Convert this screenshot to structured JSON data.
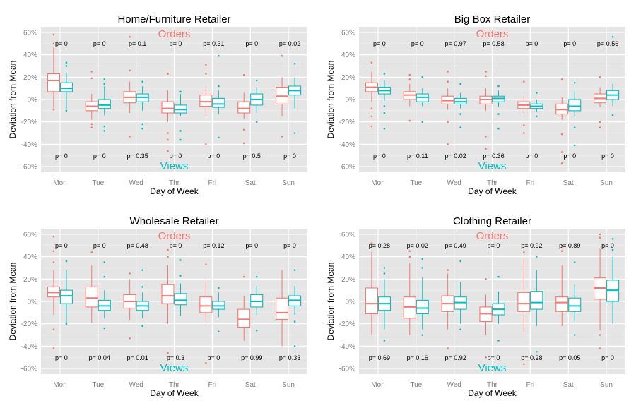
{
  "figure": {
    "colors": {
      "orders": "#f8766d",
      "views": "#00bfc4",
      "panel_bg": "#e5e5e5",
      "grid": "#ffffff"
    }
  },
  "chart_data": [
    {
      "type": "box",
      "title": "Home/Furniture Retailer",
      "xlabel": "Day of Week",
      "ylabel": "Deviation from Mean",
      "ylim": [
        -0.65,
        0.65
      ],
      "yticks": [
        -0.6,
        -0.4,
        -0.2,
        0,
        0.2,
        0.4,
        0.6
      ],
      "ytick_labels": [
        "-60%",
        "-40%",
        "-20%",
        "0%",
        "20%",
        "40%",
        "60%"
      ],
      "categories": [
        "Mon",
        "Tue",
        "Wed",
        "Thr",
        "Fri",
        "Sat",
        "Sun"
      ],
      "top_label": "Orders",
      "bottom_label": "Views",
      "p_top": [
        "p= 0",
        "p= 0",
        "p= 0.1",
        "p= 0",
        "p= 0.31",
        "p= 0",
        "p= 0.02"
      ],
      "p_bottom": [
        "p= 0",
        "p= 0",
        "p= 0.35",
        "p= 0",
        "p= 0",
        "p= 0.5",
        "p= 0"
      ],
      "series": [
        {
          "name": "Orders",
          "boxes": [
            {
              "lo": -0.08,
              "q1": 0.07,
              "med": 0.17,
              "q3": 0.23,
              "hi": 0.47,
              "out": [
                0.58,
                0.5,
                -0.09
              ]
            },
            {
              "lo": -0.18,
              "q1": -0.1,
              "med": -0.06,
              "q3": -0.02,
              "hi": 0.05,
              "out": [
                0.25,
                0.19,
                -0.22,
                -0.25
              ]
            },
            {
              "lo": -0.12,
              "q1": -0.03,
              "med": 0.02,
              "q3": 0.07,
              "hi": 0.16,
              "out": [
                0.26,
                0.56,
                -0.33
              ]
            },
            {
              "lo": -0.2,
              "q1": -0.12,
              "med": -0.08,
              "q3": -0.02,
              "hi": 0.08,
              "out": [
                0.23,
                -0.3,
                -0.36,
                -0.46
              ]
            },
            {
              "lo": -0.15,
              "q1": -0.06,
              "med": -0.02,
              "q3": 0.04,
              "hi": 0.12,
              "out": [
                0.31,
                0.23,
                -0.4
              ]
            },
            {
              "lo": -0.17,
              "q1": -0.12,
              "med": -0.08,
              "q3": -0.02,
              "hi": 0.06,
              "out": [
                0.22,
                -0.27,
                -0.39
              ]
            },
            {
              "lo": -0.15,
              "q1": -0.04,
              "med": 0.03,
              "q3": 0.11,
              "hi": 0.2,
              "out": [
                0.39,
                -0.33
              ]
            }
          ]
        },
        {
          "name": "Views",
          "boxes": [
            {
              "lo": -0.08,
              "q1": 0.07,
              "med": 0.1,
              "q3": 0.15,
              "hi": 0.24,
              "out": [
                0.33,
                0.3,
                -0.1
              ]
            },
            {
              "lo": -0.14,
              "q1": -0.08,
              "med": -0.05,
              "q3": 0.0,
              "hi": 0.12,
              "out": [
                0.18,
                0.14,
                -0.24,
                -0.28
              ]
            },
            {
              "lo": -0.1,
              "q1": -0.02,
              "med": 0.02,
              "q3": 0.05,
              "hi": 0.12,
              "out": [
                0.16,
                -0.22,
                -0.26
              ]
            },
            {
              "lo": -0.15,
              "q1": -0.12,
              "med": -0.09,
              "q3": -0.05,
              "hi": 0.05,
              "out": [
                0.07,
                -0.28,
                -0.36
              ]
            },
            {
              "lo": -0.13,
              "q1": -0.07,
              "med": -0.04,
              "q3": 0.01,
              "hi": 0.08,
              "out": [
                0.39,
                0.12,
                -0.34
              ]
            },
            {
              "lo": -0.12,
              "q1": -0.05,
              "med": 0.0,
              "q3": 0.05,
              "hi": 0.11,
              "out": [
                0.17,
                -0.2
              ]
            },
            {
              "lo": -0.08,
              "q1": 0.04,
              "med": 0.08,
              "q3": 0.12,
              "hi": 0.2,
              "out": [
                0.32,
                -0.3
              ]
            }
          ]
        }
      ]
    },
    {
      "type": "box",
      "title": "Big Box Retailer",
      "xlabel": "Day of Week",
      "ylabel": "Deviation from Mean",
      "ylim": [
        -0.65,
        0.65
      ],
      "yticks": [
        -0.6,
        -0.4,
        -0.2,
        0,
        0.2,
        0.4,
        0.6
      ],
      "ytick_labels": [
        "-60%",
        "-40%",
        "-20%",
        "0%",
        "20%",
        "40%",
        "60%"
      ],
      "categories": [
        "Mon",
        "Tue",
        "Wed",
        "Thr",
        "Fri",
        "Sat",
        "Sun"
      ],
      "top_label": "Orders",
      "bottom_label": "Views",
      "p_top": [
        "p= 0",
        "p= 0",
        "p= 0.97",
        "p= 0.58",
        "p= 0",
        "p= 0",
        "p= 0.56"
      ],
      "p_bottom": [
        "p= 0",
        "p= 0.11",
        "p= 0.02",
        "p= 0.36",
        "p= 0",
        "p= 0",
        "p= 0"
      ],
      "series": [
        {
          "name": "Orders",
          "boxes": [
            {
              "lo": -0.02,
              "q1": 0.07,
              "med": 0.11,
              "q3": 0.15,
              "hi": 0.25,
              "out": [
                0.33,
                -0.08,
                -0.15,
                -0.24
              ]
            },
            {
              "lo": -0.06,
              "q1": 0.0,
              "med": 0.04,
              "q3": 0.07,
              "hi": 0.14,
              "out": [
                0.22,
                0.18,
                -0.19
              ]
            },
            {
              "lo": -0.09,
              "q1": -0.04,
              "med": -0.01,
              "q3": 0.03,
              "hi": 0.1,
              "out": [
                0.25,
                0.16,
                -0.2,
                -0.4
              ]
            },
            {
              "lo": -0.1,
              "q1": -0.04,
              "med": 0.0,
              "q3": 0.03,
              "hi": 0.1,
              "out": [
                0.25,
                0.21,
                -0.33,
                -0.44
              ]
            },
            {
              "lo": -0.13,
              "q1": -0.08,
              "med": -0.05,
              "q3": -0.02,
              "hi": 0.04,
              "out": [
                0.16,
                -0.23,
                -0.3
              ]
            },
            {
              "lo": -0.18,
              "q1": -0.13,
              "med": -0.09,
              "q3": -0.04,
              "hi": 0.02,
              "out": [
                0.18,
                -0.31,
                -0.47,
                -0.57
              ]
            },
            {
              "lo": -0.07,
              "q1": -0.03,
              "med": 0.01,
              "q3": 0.05,
              "hi": 0.11,
              "out": [
                0.2,
                -0.2,
                -0.25
              ]
            }
          ]
        },
        {
          "name": "Views",
          "boxes": [
            {
              "lo": -0.01,
              "q1": 0.05,
              "med": 0.08,
              "q3": 0.11,
              "hi": 0.17,
              "out": [
                0.23,
                -0.06,
                -0.12,
                -0.26
              ]
            },
            {
              "lo": -0.06,
              "q1": -0.02,
              "med": 0.02,
              "q3": 0.05,
              "hi": 0.1,
              "out": [
                0.2,
                -0.2
              ]
            },
            {
              "lo": -0.08,
              "q1": -0.04,
              "med": -0.02,
              "q3": 0.01,
              "hi": 0.06,
              "out": [
                0.14,
                -0.13,
                -0.25
              ]
            },
            {
              "lo": -0.07,
              "q1": -0.02,
              "med": 0.01,
              "q3": 0.03,
              "hi": 0.08,
              "out": [
                0.12,
                -0.13,
                -0.26
              ]
            },
            {
              "lo": -0.11,
              "q1": -0.08,
              "med": -0.06,
              "q3": -0.04,
              "hi": 0.0,
              "out": [
                0.06,
                -0.15
              ]
            },
            {
              "lo": -0.15,
              "q1": -0.1,
              "med": -0.06,
              "q3": 0.0,
              "hi": 0.08,
              "out": [
                0.15,
                -0.25,
                -0.41
              ]
            },
            {
              "lo": -0.06,
              "q1": 0.0,
              "med": 0.04,
              "q3": 0.08,
              "hi": 0.14,
              "out": [
                0.56,
                -0.14
              ]
            }
          ]
        }
      ]
    },
    {
      "type": "box",
      "title": "Wholesale Retailer",
      "xlabel": "Day of Week",
      "ylabel": "Deviation from Mean",
      "ylim": [
        -0.65,
        0.65
      ],
      "yticks": [
        -0.6,
        -0.4,
        -0.2,
        0,
        0.2,
        0.4,
        0.6
      ],
      "ytick_labels": [
        "-60%",
        "-40%",
        "-20%",
        "0%",
        "20%",
        "40%",
        "60%"
      ],
      "categories": [
        "Mon",
        "Tue",
        "Wed",
        "Thr",
        "Fri",
        "Sat",
        "Sun"
      ],
      "top_label": "Orders",
      "bottom_label": "Views",
      "p_top": [
        "p= 0",
        "p= 0",
        "p= 0.48",
        "p= 0",
        "p= 0.12",
        "p= 0",
        "p= 0"
      ],
      "p_bottom": [
        "p= 0",
        "p= 0.04",
        "p= 0.01",
        "p= 0.3",
        "p= 0",
        "p= 0.99",
        "p= 0.33"
      ],
      "series": [
        {
          "name": "Orders",
          "boxes": [
            {
              "lo": -0.12,
              "q1": 0.04,
              "med": 0.08,
              "q3": 0.13,
              "hi": 0.28,
              "out": [
                0.58,
                0.45,
                0.35,
                -0.25,
                -0.42
              ]
            },
            {
              "lo": -0.19,
              "q1": -0.05,
              "med": 0.03,
              "q3": 0.13,
              "hi": 0.32,
              "out": [
                0.44
              ]
            },
            {
              "lo": -0.17,
              "q1": -0.06,
              "med": 0.0,
              "q3": 0.06,
              "hi": 0.2,
              "out": [
                0.25,
                -0.33
              ]
            },
            {
              "lo": -0.2,
              "q1": -0.02,
              "med": 0.05,
              "q3": 0.15,
              "hi": 0.32,
              "out": [
                0.46,
                0.4,
                -0.46
              ]
            },
            {
              "lo": -0.19,
              "q1": -0.1,
              "med": -0.04,
              "q3": 0.04,
              "hi": 0.18,
              "out": [
                0.33,
                -0.55
              ]
            },
            {
              "lo": -0.35,
              "q1": -0.23,
              "med": -0.16,
              "q3": -0.07,
              "hi": 0.05,
              "out": [
                0.22
              ]
            },
            {
              "lo": -0.4,
              "q1": -0.16,
              "med": -0.1,
              "q3": 0.03,
              "hi": 0.28,
              "out": []
            }
          ]
        },
        {
          "name": "Views",
          "boxes": [
            {
              "lo": -0.2,
              "q1": -0.02,
              "med": 0.05,
              "q3": 0.1,
              "hi": 0.28,
              "out": [
                0.36,
                -0.2
              ]
            },
            {
              "lo": -0.15,
              "q1": -0.08,
              "med": -0.04,
              "q3": 0.01,
              "hi": 0.1,
              "out": [
                0.35,
                0.22,
                -0.24
              ]
            },
            {
              "lo": -0.15,
              "q1": -0.08,
              "med": -0.04,
              "q3": 0.0,
              "hi": 0.08,
              "out": [
                0.28,
                0.13,
                -0.22
              ]
            },
            {
              "lo": -0.13,
              "q1": -0.03,
              "med": 0.01,
              "q3": 0.07,
              "hi": 0.16,
              "out": [
                0.37,
                0.23
              ]
            },
            {
              "lo": -0.14,
              "q1": -0.07,
              "med": -0.04,
              "q3": 0.0,
              "hi": 0.08,
              "out": [
                0.12,
                -0.27
              ]
            },
            {
              "lo": -0.12,
              "q1": -0.05,
              "med": 0.0,
              "q3": 0.06,
              "hi": 0.14,
              "out": [
                0.22,
                -0.26
              ]
            },
            {
              "lo": -0.12,
              "q1": -0.04,
              "med": 0.01,
              "q3": 0.05,
              "hi": 0.14,
              "out": [
                0.28,
                -0.18,
                -0.4
              ]
            }
          ]
        }
      ]
    },
    {
      "type": "box",
      "title": "Clothing Retailer",
      "xlabel": "Day of Week",
      "ylabel": "Deviation from Mean",
      "ylim": [
        -0.65,
        0.65
      ],
      "yticks": [
        -0.6,
        -0.4,
        -0.2,
        0,
        0.2,
        0.4,
        0.6
      ],
      "ytick_labels": [
        "-60%",
        "-40%",
        "-20%",
        "0%",
        "20%",
        "40%",
        "60%"
      ],
      "categories": [
        "Mon",
        "Tue",
        "Wed",
        "Thr",
        "Fri",
        "Sat",
        "Sun"
      ],
      "top_label": "Orders",
      "bottom_label": "Views",
      "p_top": [
        "p= 0.28",
        "p= 0.02",
        "p= 0.49",
        "p= 0",
        "p= 0.92",
        "p= 0.89",
        "p= 0"
      ],
      "p_bottom": [
        "p= 0.69",
        "p= 0.16",
        "p= 0.92",
        "p= 0",
        "p= 0.28",
        "p= 0.05",
        "p= 0"
      ],
      "series": [
        {
          "name": "Orders",
          "boxes": [
            {
              "lo": -0.3,
              "q1": -0.11,
              "med": -0.02,
              "q3": 0.12,
              "hi": 0.44,
              "out": [
                0.52
              ]
            },
            {
              "lo": -0.3,
              "q1": -0.15,
              "med": -0.05,
              "q3": 0.04,
              "hi": 0.34,
              "out": [
                0.45,
                0.4
              ]
            },
            {
              "lo": -0.25,
              "q1": -0.09,
              "med": -0.02,
              "q3": 0.05,
              "hi": 0.25,
              "out": [
                0.28,
                -0.42
              ]
            },
            {
              "lo": -0.3,
              "q1": -0.18,
              "med": -0.11,
              "q3": -0.05,
              "hi": 0.06,
              "out": [
                0.2,
                -0.5
              ]
            },
            {
              "lo": -0.28,
              "q1": -0.09,
              "med": -0.02,
              "q3": 0.08,
              "hi": 0.38,
              "out": [
                0.44,
                -0.56
              ]
            },
            {
              "lo": -0.22,
              "q1": -0.09,
              "med": -0.01,
              "q3": 0.04,
              "hi": 0.32,
              "out": [
                0.5,
                0.45
              ]
            },
            {
              "lo": -0.26,
              "q1": 0.02,
              "med": 0.12,
              "q3": 0.21,
              "hi": 0.47,
              "out": [
                0.6,
                0.57,
                -0.3,
                -0.42
              ]
            }
          ]
        },
        {
          "name": "Views",
          "boxes": [
            {
              "lo": -0.25,
              "q1": -0.08,
              "med": -0.02,
              "q3": 0.04,
              "hi": 0.2,
              "out": [
                0.3,
                0.25,
                -0.35
              ]
            },
            {
              "lo": -0.25,
              "q1": -0.11,
              "med": -0.06,
              "q3": 0.01,
              "hi": 0.22,
              "out": [
                0.38,
                0.3,
                -0.3
              ]
            },
            {
              "lo": -0.2,
              "q1": -0.07,
              "med": -0.01,
              "q3": 0.04,
              "hi": 0.17,
              "out": [
                0.36,
                -0.25
              ]
            },
            {
              "lo": -0.2,
              "q1": -0.12,
              "med": -0.07,
              "q3": -0.02,
              "hi": 0.09,
              "out": [
                0.22,
                -0.35
              ]
            },
            {
              "lo": -0.22,
              "q1": -0.07,
              "med": -0.01,
              "q3": 0.09,
              "hi": 0.28,
              "out": [
                0.4,
                -0.45
              ]
            },
            {
              "lo": -0.18,
              "q1": -0.09,
              "med": -0.04,
              "q3": 0.03,
              "hi": 0.15,
              "out": [
                0.35,
                -0.3
              ]
            },
            {
              "lo": -0.2,
              "q1": 0.0,
              "med": 0.1,
              "q3": 0.19,
              "hi": 0.4,
              "out": [
                0.56,
                0.46
              ]
            }
          ]
        }
      ]
    }
  ]
}
